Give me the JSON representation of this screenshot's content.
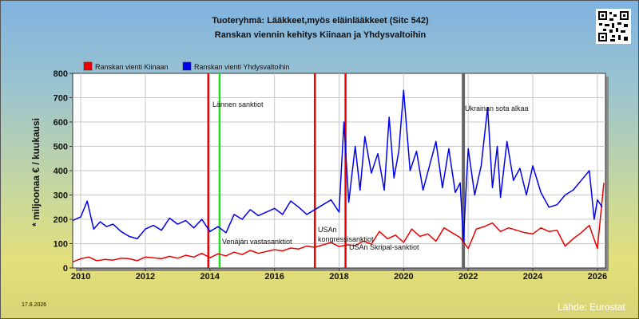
{
  "header": {
    "title_line1": "Tuoteryhmä: Lääkkeet,myös eläinlääkkeet (Sitc 542)",
    "title_line2": "Ranskan viennin kehitys  Kiinaan ja Yhdysvaltoihin"
  },
  "footer": {
    "date": "17.8.2026",
    "source": "Lähde: Eurostat"
  },
  "colors": {
    "china": "#ee0000",
    "usa": "#0000ee",
    "sanction": "#ee0000",
    "western_sanction": "#22dd22",
    "ukraine_war": "#666666"
  },
  "chart_data": {
    "type": "line",
    "ylabel": "* miljoonaa € / kuukausi",
    "ylim": [
      0,
      800
    ],
    "yticks": [
      0,
      100,
      200,
      300,
      400,
      500,
      600,
      700,
      800
    ],
    "xlim": [
      2009.75,
      2026.25
    ],
    "xticks": [
      2010,
      2012,
      2014,
      2016,
      2018,
      2020,
      2022,
      2024,
      2026
    ],
    "grid": true,
    "legend": "top-left",
    "series": [
      {
        "name": "Ranskan vienti Kiinaan",
        "color": "#ee0000",
        "x": [
          2009.75,
          2010.0,
          2010.25,
          2010.5,
          2010.75,
          2011.0,
          2011.25,
          2011.5,
          2011.75,
          2012.0,
          2012.25,
          2012.5,
          2012.75,
          2013.0,
          2013.25,
          2013.5,
          2013.75,
          2014.0,
          2014.25,
          2014.5,
          2014.75,
          2015.0,
          2015.25,
          2015.5,
          2015.75,
          2016.0,
          2016.25,
          2016.5,
          2016.75,
          2017.0,
          2017.25,
          2017.5,
          2017.75,
          2018.0,
          2018.25,
          2018.5,
          2018.75,
          2019.0,
          2019.25,
          2019.5,
          2019.75,
          2020.0,
          2020.25,
          2020.5,
          2020.75,
          2021.0,
          2021.25,
          2021.5,
          2021.75,
          2022.0,
          2022.25,
          2022.5,
          2022.75,
          2023.0,
          2023.25,
          2023.5,
          2023.75,
          2024.0,
          2024.25,
          2024.5,
          2024.75,
          2025.0,
          2025.25,
          2025.5,
          2025.75,
          2026.0,
          2026.2
        ],
        "values": [
          25,
          38,
          45,
          30,
          35,
          32,
          40,
          38,
          30,
          45,
          42,
          38,
          48,
          40,
          52,
          45,
          60,
          42,
          58,
          50,
          65,
          55,
          72,
          60,
          68,
          75,
          70,
          82,
          78,
          90,
          85,
          95,
          105,
          88,
          95,
          92,
          110,
          98,
          150,
          120,
          135,
          105,
          160,
          130,
          140,
          110,
          165,
          145,
          125,
          80,
          160,
          170,
          185,
          150,
          165,
          155,
          145,
          140,
          165,
          150,
          155,
          90,
          120,
          145,
          175,
          80,
          350
        ]
      },
      {
        "name": "Ranskan vienti Yhdysvaltoihin",
        "color": "#0000ee",
        "x": [
          2009.75,
          2010.0,
          2010.2,
          2010.4,
          2010.6,
          2010.8,
          2011.0,
          2011.25,
          2011.5,
          2011.75,
          2012.0,
          2012.25,
          2012.5,
          2012.75,
          2013.0,
          2013.25,
          2013.5,
          2013.75,
          2014.0,
          2014.25,
          2014.5,
          2014.75,
          2015.0,
          2015.25,
          2015.5,
          2015.75,
          2016.0,
          2016.25,
          2016.5,
          2016.75,
          2017.0,
          2017.25,
          2017.5,
          2017.75,
          2017.9,
          2018.0,
          2018.15,
          2018.3,
          2018.5,
          2018.65,
          2018.8,
          2019.0,
          2019.2,
          2019.4,
          2019.55,
          2019.7,
          2019.85,
          2020.0,
          2020.2,
          2020.4,
          2020.6,
          2020.8,
          2021.0,
          2021.2,
          2021.4,
          2021.6,
          2021.75,
          2021.85,
          2022.0,
          2022.2,
          2022.4,
          2022.6,
          2022.75,
          2022.9,
          2023.0,
          2023.2,
          2023.4,
          2023.6,
          2023.8,
          2024.0,
          2024.25,
          2024.5,
          2024.75,
          2025.0,
          2025.25,
          2025.5,
          2025.75,
          2025.9,
          2026.0,
          2026.15
        ],
        "values": [
          195,
          210,
          275,
          160,
          190,
          170,
          180,
          150,
          130,
          120,
          160,
          175,
          155,
          205,
          180,
          195,
          165,
          200,
          150,
          170,
          145,
          220,
          200,
          240,
          215,
          230,
          245,
          220,
          275,
          250,
          220,
          240,
          260,
          280,
          250,
          230,
          600,
          270,
          500,
          320,
          540,
          390,
          470,
          320,
          620,
          370,
          480,
          730,
          400,
          480,
          320,
          420,
          520,
          330,
          490,
          310,
          350,
          110,
          490,
          300,
          420,
          660,
          330,
          500,
          290,
          520,
          360,
          410,
          300,
          420,
          310,
          250,
          260,
          300,
          320,
          360,
          400,
          200,
          280,
          250
        ]
      }
    ],
    "events": [
      {
        "x": 2013.95,
        "color": "#ee0000",
        "label": ""
      },
      {
        "x": 2014.3,
        "color": "#22dd22",
        "label": "Lännen sanktiot"
      },
      {
        "x": 2014.4,
        "color": "",
        "label": "Venäjän vastasanktiot"
      },
      {
        "x": 2017.25,
        "color": "#ee0000",
        "label": "USAn kongressisanktiot"
      },
      {
        "x": 2018.2,
        "color": "#ee0000",
        "label": "USAn Skripal-sanktiot"
      },
      {
        "x": 2021.85,
        "color": "#666666",
        "label": "Ukrainan sota alkaa"
      }
    ]
  }
}
